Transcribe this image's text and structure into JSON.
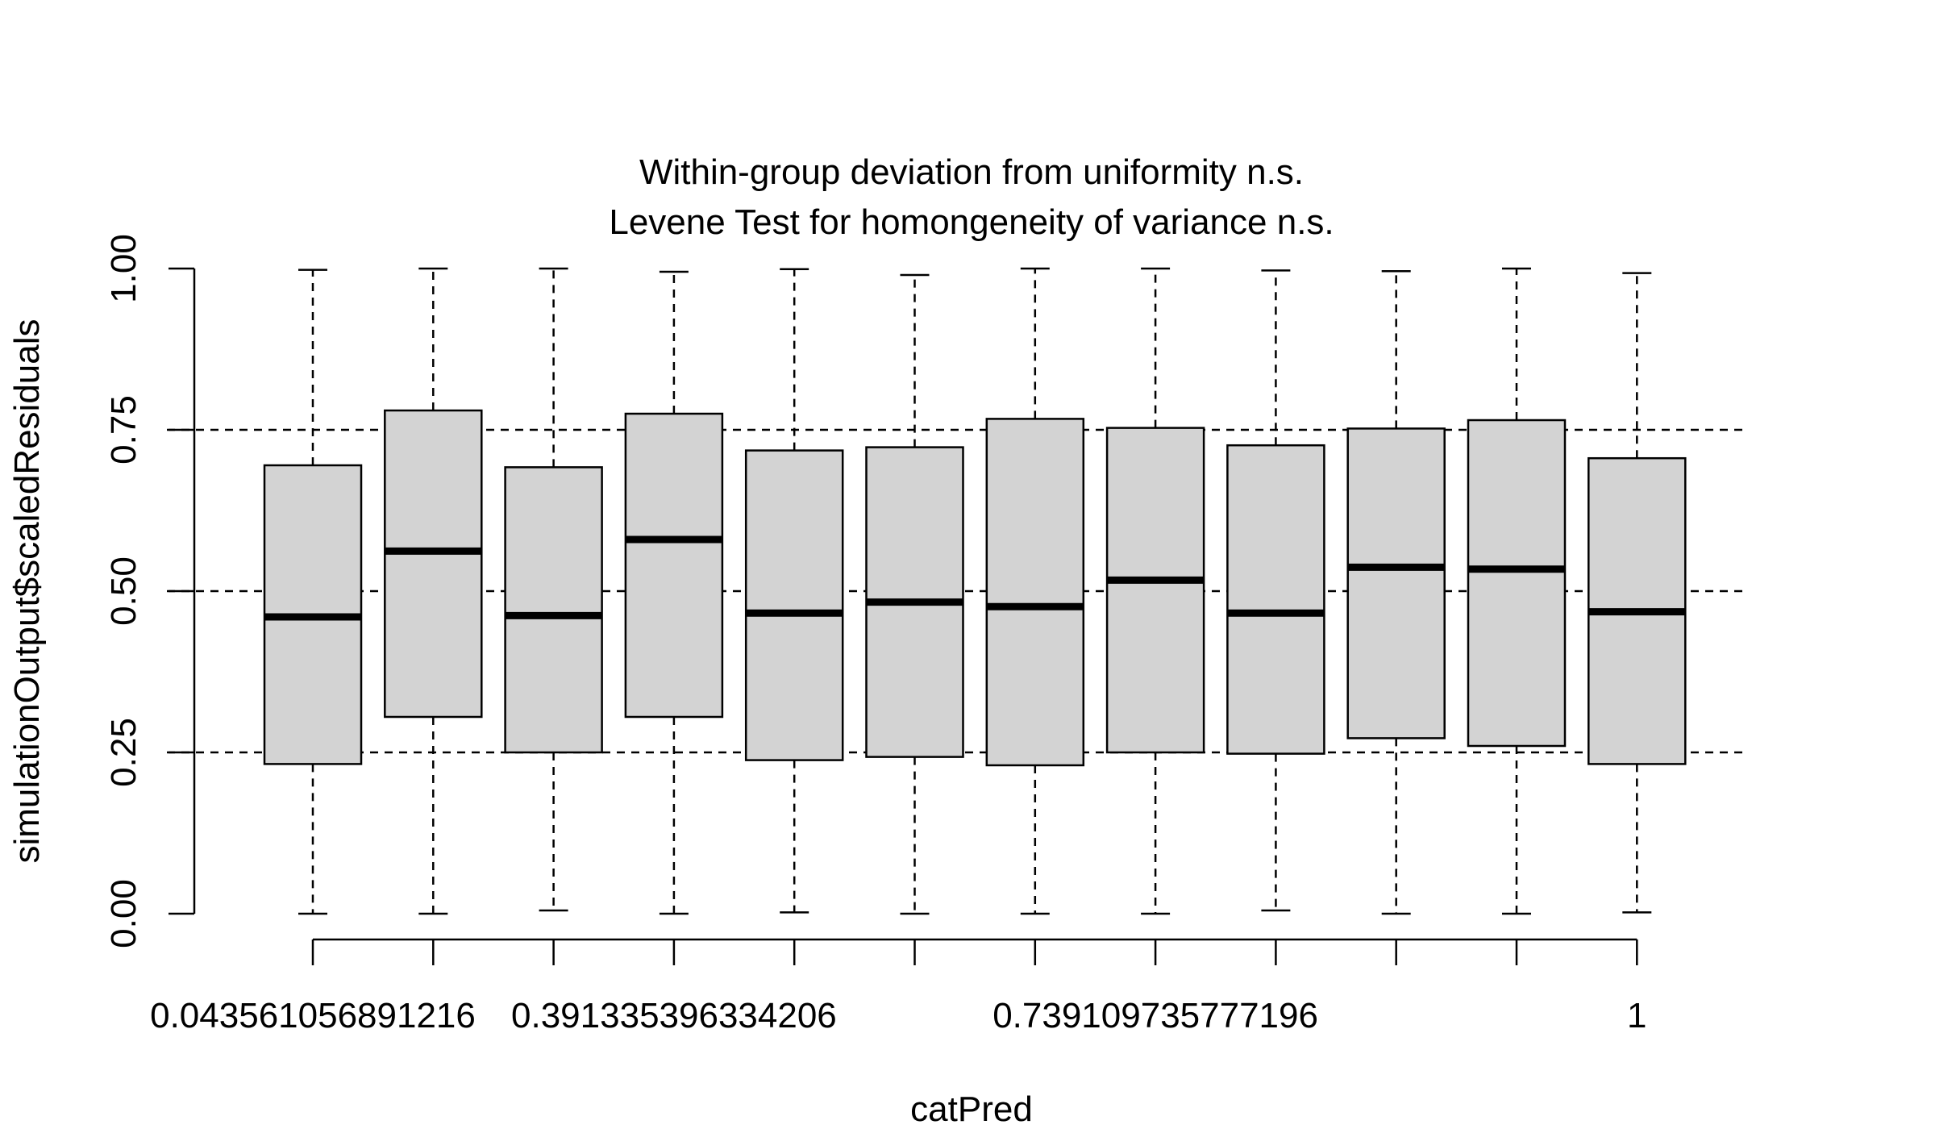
{
  "chart_data": {
    "type": "boxplot",
    "title_lines": [
      "Within-group deviation from uniformity n.s.",
      "Levene Test for homongeneity of variance n.s."
    ],
    "xlabel": "catPred",
    "ylabel": "simulationOutput$scaledResiduals",
    "ylim": [
      0,
      1
    ],
    "y_ticks": [
      0,
      0.25,
      0.5,
      0.75,
      1
    ],
    "y_tick_labels": [
      "0.00",
      "0.25",
      "0.50",
      "0.75",
      "1.00"
    ],
    "reference_lines": [
      0.25,
      0.5,
      0.75
    ],
    "x_tick_labels": [
      "0.043561056891216",
      "",
      "",
      "0.391335396334206",
      "",
      "",
      "",
      "0.739109735777196",
      "",
      "",
      "",
      "1"
    ],
    "boxes": [
      {
        "min": 0.0,
        "q1": 0.232,
        "median": 0.46,
        "q3": 0.695,
        "max": 0.998
      },
      {
        "min": 0.0,
        "q1": 0.305,
        "median": 0.562,
        "q3": 0.78,
        "max": 1.0
      },
      {
        "min": 0.005,
        "q1": 0.25,
        "median": 0.462,
        "q3": 0.692,
        "max": 1.0
      },
      {
        "min": 0.0,
        "q1": 0.305,
        "median": 0.58,
        "q3": 0.775,
        "max": 0.995
      },
      {
        "min": 0.002,
        "q1": 0.238,
        "median": 0.466,
        "q3": 0.718,
        "max": 0.999
      },
      {
        "min": 0.0,
        "q1": 0.243,
        "median": 0.483,
        "q3": 0.723,
        "max": 0.99
      },
      {
        "min": 0.0,
        "q1": 0.23,
        "median": 0.476,
        "q3": 0.767,
        "max": 1.0
      },
      {
        "min": 0.0,
        "q1": 0.25,
        "median": 0.517,
        "q3": 0.753,
        "max": 1.0
      },
      {
        "min": 0.005,
        "q1": 0.248,
        "median": 0.466,
        "q3": 0.726,
        "max": 0.997
      },
      {
        "min": 0.0,
        "q1": 0.272,
        "median": 0.537,
        "q3": 0.752,
        "max": 0.996
      },
      {
        "min": 0.0,
        "q1": 0.26,
        "median": 0.534,
        "q3": 0.765,
        "max": 1.0
      },
      {
        "min": 0.002,
        "q1": 0.232,
        "median": 0.468,
        "q3": 0.706,
        "max": 0.993
      }
    ],
    "box_fill": "#d3d3d3",
    "line_color": "#000000"
  }
}
